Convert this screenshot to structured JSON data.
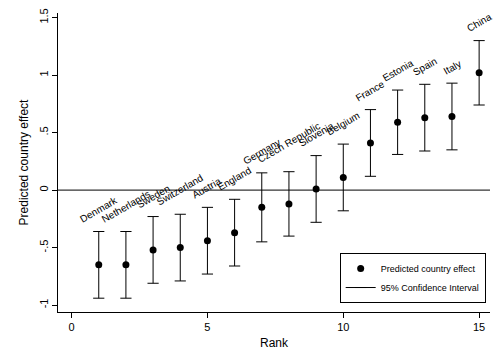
{
  "chart_data": {
    "type": "scatter",
    "x_label": "Rank",
    "y_label": "Predicted country effect",
    "x": [
      1,
      2,
      3,
      4,
      5,
      6,
      7,
      8,
      9,
      10,
      11,
      12,
      13,
      14,
      15
    ],
    "labels": [
      "Denmark",
      "Netherlands",
      "Sweden",
      "Switzerland",
      "Austria",
      "England",
      "Germany",
      "Czech Republic",
      "Slovenia",
      "Belgium",
      "France",
      "Estonia",
      "Spain",
      "Italy",
      "China"
    ],
    "series": [
      {
        "name": "Predicted country effect",
        "color": "#000000",
        "marker": "circle",
        "values": [
          -0.65,
          -0.65,
          -0.52,
          -0.5,
          -0.44,
          -0.37,
          -0.15,
          -0.12,
          0.01,
          0.11,
          0.41,
          0.59,
          0.63,
          0.64,
          1.02
        ]
      }
    ],
    "confidence_interval": {
      "name": "95% Confidence Interval",
      "color": "#000000",
      "lower": [
        -0.94,
        -0.94,
        -0.81,
        -0.79,
        -0.73,
        -0.66,
        -0.45,
        -0.4,
        -0.28,
        -0.18,
        0.12,
        0.31,
        0.34,
        0.35,
        0.74
      ],
      "upper": [
        -0.36,
        -0.36,
        -0.23,
        -0.21,
        -0.15,
        -0.08,
        0.15,
        0.16,
        0.3,
        0.4,
        0.7,
        0.87,
        0.92,
        0.93,
        1.3
      ]
    },
    "reference_line": 0,
    "xlim": [
      -0.5,
      15.4
    ],
    "xticks": [
      0,
      5,
      10,
      15
    ],
    "ylim": [
      -1.06,
      1.54
    ],
    "yticks": [
      -1,
      {
        "value": -0.5,
        "label": "-.5"
      },
      0,
      {
        "value": 0.5,
        "label": ".5"
      },
      1,
      1.5
    ],
    "grid": false,
    "legend": "bottom right"
  }
}
